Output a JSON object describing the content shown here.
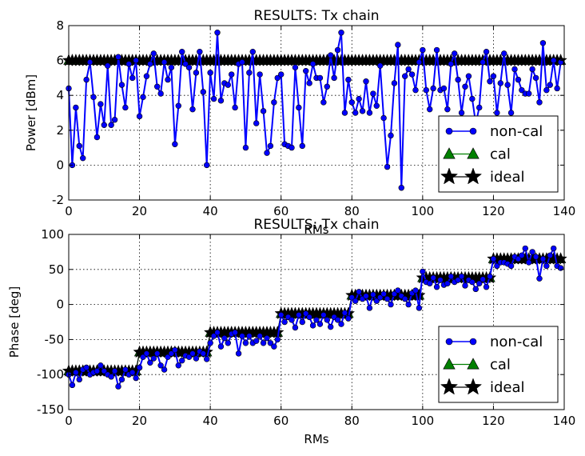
{
  "chart_data": [
    {
      "type": "line",
      "title": "RESULTS: Tx chain",
      "xlabel": "RMs",
      "ylabel": "Power [dBm]",
      "xlim": [
        0,
        140
      ],
      "ylim": [
        -2,
        8
      ],
      "xticks": [
        0,
        20,
        40,
        60,
        80,
        100,
        120,
        140
      ],
      "yticks": [
        -2,
        0,
        2,
        4,
        6,
        8
      ],
      "grid": true,
      "legend_position": "lower-right",
      "x": [
        0,
        1,
        2,
        3,
        4,
        5,
        6,
        7,
        8,
        9,
        10,
        11,
        12,
        13,
        14,
        15,
        16,
        17,
        18,
        19,
        20,
        21,
        22,
        23,
        24,
        25,
        26,
        27,
        28,
        29,
        30,
        31,
        32,
        33,
        34,
        35,
        36,
        37,
        38,
        39,
        40,
        41,
        42,
        43,
        44,
        45,
        46,
        47,
        48,
        49,
        50,
        51,
        52,
        53,
        54,
        55,
        56,
        57,
        58,
        59,
        60,
        61,
        62,
        63,
        64,
        65,
        66,
        67,
        68,
        69,
        70,
        71,
        72,
        73,
        74,
        75,
        76,
        77,
        78,
        79,
        80,
        81,
        82,
        83,
        84,
        85,
        86,
        87,
        88,
        89,
        90,
        91,
        92,
        93,
        94,
        95,
        96,
        97,
        98,
        99,
        100,
        101,
        102,
        103,
        104,
        105,
        106,
        107,
        108,
        109,
        110,
        111,
        112,
        113,
        114,
        115,
        116,
        117,
        118,
        119,
        120,
        121,
        122,
        123,
        124,
        125,
        126,
        127,
        128,
        129,
        130,
        131,
        132,
        133,
        134,
        135,
        136,
        137,
        138,
        139
      ],
      "series": [
        {
          "name": "non-cal",
          "color": "#0000ff",
          "marker": "circle",
          "values": [
            4.4,
            0.0,
            3.3,
            1.1,
            0.4,
            4.9,
            5.9,
            3.9,
            1.6,
            3.5,
            2.3,
            5.7,
            2.3,
            2.6,
            6.2,
            4.6,
            3.3,
            5.8,
            5.0,
            6.0,
            2.8,
            3.9,
            5.1,
            5.8,
            6.4,
            4.5,
            4.1,
            5.9,
            4.9,
            5.6,
            1.2,
            3.4,
            6.5,
            5.8,
            5.6,
            3.2,
            5.3,
            6.5,
            4.2,
            0.0,
            5.3,
            3.8,
            7.6,
            3.7,
            4.7,
            4.6,
            5.2,
            3.3,
            5.8,
            5.9,
            1.0,
            5.3,
            6.5,
            2.4,
            5.2,
            3.1,
            0.7,
            1.1,
            3.6,
            5.0,
            5.2,
            1.2,
            1.1,
            1.0,
            5.6,
            3.3,
            1.1,
            5.4,
            4.7,
            5.8,
            5.0,
            5.0,
            3.6,
            4.5,
            6.3,
            5.0,
            6.6,
            7.6,
            3.0,
            4.9,
            3.6,
            3.0,
            3.8,
            3.1,
            4.8,
            3.0,
            4.1,
            3.4,
            5.7,
            2.7,
            -0.1,
            1.7,
            4.7,
            6.9,
            -1.3,
            5.1,
            5.5,
            5.2,
            4.3,
            5.9,
            6.6,
            4.3,
            3.2,
            4.4,
            6.6,
            4.3,
            4.4,
            3.2,
            5.8,
            6.4,
            4.9,
            3.0,
            4.5,
            5.1,
            3.8,
            2.4,
            3.3,
            5.9,
            6.5,
            4.8,
            5.1,
            3.0,
            4.7,
            6.4,
            4.6,
            3.0,
            5.5,
            4.9,
            4.3,
            4.1,
            4.1,
            5.5,
            5.0,
            3.6,
            7.0,
            4.3,
            4.6,
            6.0,
            4.4,
            5.9
          ]
        },
        {
          "name": "cal",
          "color": "#008000",
          "marker": "triangle",
          "values": [
            6,
            6,
            6,
            6,
            6,
            6,
            6,
            6,
            6,
            6,
            6,
            6,
            6,
            6,
            6,
            6,
            6,
            6,
            6,
            6,
            6,
            6,
            6,
            6,
            6,
            6,
            6,
            6,
            6,
            6,
            6,
            6,
            6,
            6,
            6,
            6,
            6,
            6,
            6,
            6,
            6,
            6,
            6,
            6,
            6,
            6,
            6,
            6,
            6,
            6,
            6,
            6,
            6,
            6,
            6,
            6,
            6,
            6,
            6,
            6,
            6,
            6,
            6,
            6,
            6,
            6,
            6,
            6,
            6,
            6,
            6,
            6,
            6,
            6,
            6,
            6,
            6,
            6,
            6,
            6,
            6,
            6,
            6,
            6,
            6,
            6,
            6,
            6,
            6,
            6,
            6,
            6,
            6,
            6,
            6,
            6,
            6,
            6,
            6,
            6,
            6,
            6,
            6,
            6,
            6,
            6,
            6,
            6,
            6,
            6,
            6,
            6,
            6,
            6,
            6,
            6,
            6,
            6,
            6,
            6,
            6,
            6,
            6,
            6,
            6,
            6,
            6,
            6,
            6,
            6,
            6,
            6,
            6,
            6,
            6,
            6,
            6,
            6,
            6,
            6
          ]
        },
        {
          "name": "ideal",
          "color": "#000000",
          "marker": "star",
          "values": [
            6,
            6,
            6,
            6,
            6,
            6,
            6,
            6,
            6,
            6,
            6,
            6,
            6,
            6,
            6,
            6,
            6,
            6,
            6,
            6,
            6,
            6,
            6,
            6,
            6,
            6,
            6,
            6,
            6,
            6,
            6,
            6,
            6,
            6,
            6,
            6,
            6,
            6,
            6,
            6,
            6,
            6,
            6,
            6,
            6,
            6,
            6,
            6,
            6,
            6,
            6,
            6,
            6,
            6,
            6,
            6,
            6,
            6,
            6,
            6,
            6,
            6,
            6,
            6,
            6,
            6,
            6,
            6,
            6,
            6,
            6,
            6,
            6,
            6,
            6,
            6,
            6,
            6,
            6,
            6,
            6,
            6,
            6,
            6,
            6,
            6,
            6,
            6,
            6,
            6,
            6,
            6,
            6,
            6,
            6,
            6,
            6,
            6,
            6,
            6,
            6,
            6,
            6,
            6,
            6,
            6,
            6,
            6,
            6,
            6,
            6,
            6,
            6,
            6,
            6,
            6,
            6,
            6,
            6,
            6,
            6,
            6,
            6,
            6,
            6,
            6,
            6,
            6,
            6,
            6,
            6,
            6,
            6,
            6,
            6,
            6,
            6,
            6,
            6,
            6
          ]
        }
      ]
    },
    {
      "type": "line",
      "title": "RESULTS: Tx chain",
      "xlabel": "RMs",
      "ylabel": "Phase [deg]",
      "xlim": [
        0,
        140
      ],
      "ylim": [
        -150,
        100
      ],
      "xticks": [
        0,
        20,
        40,
        60,
        80,
        100,
        120,
        140
      ],
      "yticks": [
        -150,
        -100,
        -50,
        0,
        50,
        100
      ],
      "grid": true,
      "legend_position": "lower-right",
      "x": [
        0,
        1,
        2,
        3,
        4,
        5,
        6,
        7,
        8,
        9,
        10,
        11,
        12,
        13,
        14,
        15,
        16,
        17,
        18,
        19,
        20,
        21,
        22,
        23,
        24,
        25,
        26,
        27,
        28,
        29,
        30,
        31,
        32,
        33,
        34,
        35,
        36,
        37,
        38,
        39,
        40,
        41,
        42,
        43,
        44,
        45,
        46,
        47,
        48,
        49,
        50,
        51,
        52,
        53,
        54,
        55,
        56,
        57,
        58,
        59,
        60,
        61,
        62,
        63,
        64,
        65,
        66,
        67,
        68,
        69,
        70,
        71,
        72,
        73,
        74,
        75,
        76,
        77,
        78,
        79,
        80,
        81,
        82,
        83,
        84,
        85,
        86,
        87,
        88,
        89,
        90,
        91,
        92,
        93,
        94,
        95,
        96,
        97,
        98,
        99,
        100,
        101,
        102,
        103,
        104,
        105,
        106,
        107,
        108,
        109,
        110,
        111,
        112,
        113,
        114,
        115,
        116,
        117,
        118,
        119,
        120,
        121,
        122,
        123,
        124,
        125,
        126,
        127,
        128,
        129,
        130,
        131,
        132,
        133,
        134,
        135,
        136,
        137,
        138,
        139
      ],
      "series": [
        {
          "name": "non-cal",
          "color": "#0000ff",
          "marker": "circle",
          "values": [
            -100,
            -115,
            -97,
            -107,
            -93,
            -90,
            -100,
            -97,
            -95,
            -87,
            -95,
            -100,
            -103,
            -95,
            -117,
            -107,
            -93,
            -100,
            -97,
            -105,
            -90,
            -75,
            -70,
            -83,
            -77,
            -70,
            -87,
            -93,
            -75,
            -70,
            -65,
            -87,
            -80,
            -73,
            -75,
            -70,
            -77,
            -67,
            -70,
            -78,
            -55,
            -45,
            -40,
            -60,
            -48,
            -55,
            -42,
            -40,
            -70,
            -45,
            -55,
            -45,
            -55,
            -52,
            -45,
            -55,
            -48,
            -55,
            -60,
            -50,
            -15,
            -25,
            -18,
            -22,
            -33,
            -15,
            -25,
            -13,
            -18,
            -30,
            -22,
            -28,
            -15,
            -22,
            -32,
            -18,
            -22,
            -28,
            -12,
            -20,
            10,
            5,
            18,
            8,
            12,
            -5,
            14,
            5,
            10,
            15,
            8,
            0,
            15,
            20,
            12,
            8,
            0,
            16,
            20,
            -5,
            47,
            32,
            30,
            38,
            25,
            35,
            28,
            30,
            40,
            32,
            35,
            40,
            27,
            35,
            32,
            22,
            30,
            36,
            25,
            40,
            65,
            55,
            60,
            60,
            58,
            55,
            68,
            65,
            70,
            80,
            60,
            75,
            68,
            37,
            65,
            55,
            70,
            80,
            55,
            52
          ]
        },
        {
          "name": "cal",
          "color": "#008000",
          "marker": "triangle",
          "values": [
            -95,
            -95,
            -95,
            -95,
            -95,
            -95,
            -95,
            -95,
            -95,
            -95,
            -95,
            -95,
            -95,
            -95,
            -95,
            -95,
            -95,
            -95,
            -95,
            -95,
            -68,
            -68,
            -68,
            -68,
            -68,
            -68,
            -68,
            -68,
            -68,
            -68,
            -68,
            -68,
            -68,
            -68,
            -68,
            -68,
            -68,
            -68,
            -68,
            -68,
            -40,
            -40,
            -40,
            -40,
            -40,
            -40,
            -40,
            -40,
            -40,
            -40,
            -40,
            -40,
            -40,
            -40,
            -40,
            -40,
            -40,
            -40,
            -40,
            -40,
            -13,
            -13,
            -13,
            -13,
            -13,
            -13,
            -13,
            -13,
            -13,
            -13,
            -13,
            -13,
            -13,
            -13,
            -13,
            -13,
            -13,
            -13,
            -13,
            -13,
            13,
            13,
            13,
            13,
            13,
            13,
            13,
            13,
            13,
            13,
            13,
            13,
            13,
            13,
            13,
            13,
            13,
            13,
            13,
            13,
            38,
            38,
            38,
            38,
            38,
            38,
            38,
            38,
            38,
            38,
            38,
            38,
            38,
            38,
            38,
            38,
            38,
            38,
            38,
            38,
            65,
            65,
            65,
            65,
            65,
            65,
            65,
            65,
            65,
            65,
            65,
            65,
            65,
            65,
            65,
            65,
            65,
            65,
            65,
            65
          ]
        },
        {
          "name": "ideal",
          "color": "#000000",
          "marker": "star",
          "values": [
            -95,
            -95,
            -95,
            -95,
            -95,
            -95,
            -95,
            -95,
            -95,
            -95,
            -95,
            -95,
            -95,
            -95,
            -95,
            -95,
            -95,
            -95,
            -95,
            -95,
            -68,
            -68,
            -68,
            -68,
            -68,
            -68,
            -68,
            -68,
            -68,
            -68,
            -68,
            -68,
            -68,
            -68,
            -68,
            -68,
            -68,
            -68,
            -68,
            -68,
            -40,
            -40,
            -40,
            -40,
            -40,
            -40,
            -40,
            -40,
            -40,
            -40,
            -40,
            -40,
            -40,
            -40,
            -40,
            -40,
            -40,
            -40,
            -40,
            -40,
            -13,
            -13,
            -13,
            -13,
            -13,
            -13,
            -13,
            -13,
            -13,
            -13,
            -13,
            -13,
            -13,
            -13,
            -13,
            -13,
            -13,
            -13,
            -13,
            -13,
            13,
            13,
            13,
            13,
            13,
            13,
            13,
            13,
            13,
            13,
            13,
            13,
            13,
            13,
            13,
            13,
            13,
            13,
            13,
            13,
            38,
            38,
            38,
            38,
            38,
            38,
            38,
            38,
            38,
            38,
            38,
            38,
            38,
            38,
            38,
            38,
            38,
            38,
            38,
            38,
            65,
            65,
            65,
            65,
            65,
            65,
            65,
            65,
            65,
            65,
            65,
            65,
            65,
            65,
            65,
            65,
            65,
            65,
            65,
            65
          ]
        }
      ]
    }
  ]
}
